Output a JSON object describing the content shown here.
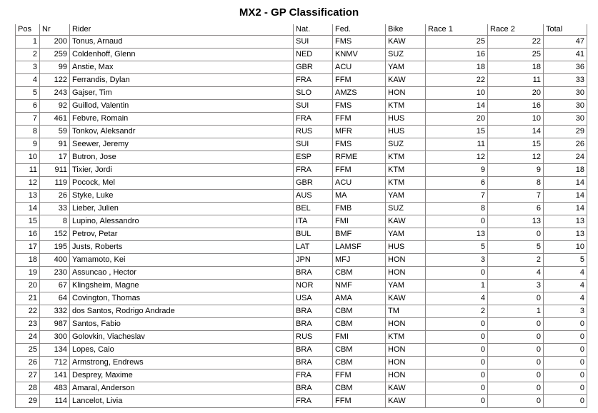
{
  "page": {
    "title": "MX2 - GP Classification"
  },
  "table": {
    "columns": [
      {
        "key": "pos",
        "label": "Pos"
      },
      {
        "key": "nr",
        "label": "Nr"
      },
      {
        "key": "rider",
        "label": "Rider"
      },
      {
        "key": "nat",
        "label": "Nat."
      },
      {
        "key": "fed",
        "label": "Fed."
      },
      {
        "key": "bike",
        "label": "Bike"
      },
      {
        "key": "race1",
        "label": "Race 1"
      },
      {
        "key": "race2",
        "label": "Race 2"
      },
      {
        "key": "total",
        "label": "Total"
      }
    ],
    "rows": [
      [
        "1",
        "200",
        "Tonus, Arnaud",
        "SUI",
        "FMS",
        "KAW",
        "25",
        "22",
        "47"
      ],
      [
        "2",
        "259",
        "Coldenhoff, Glenn",
        "NED",
        "KNMV",
        "SUZ",
        "16",
        "25",
        "41"
      ],
      [
        "3",
        "99",
        "Anstie, Max",
        "GBR",
        "ACU",
        "YAM",
        "18",
        "18",
        "36"
      ],
      [
        "4",
        "122",
        "Ferrandis, Dylan",
        "FRA",
        "FFM",
        "KAW",
        "22",
        "11",
        "33"
      ],
      [
        "5",
        "243",
        "Gajser, Tim",
        "SLO",
        "AMZS",
        "HON",
        "10",
        "20",
        "30"
      ],
      [
        "6",
        "92",
        "Guillod, Valentin",
        "SUI",
        "FMS",
        "KTM",
        "14",
        "16",
        "30"
      ],
      [
        "7",
        "461",
        "Febvre, Romain",
        "FRA",
        "FFM",
        "HUS",
        "20",
        "10",
        "30"
      ],
      [
        "8",
        "59",
        "Tonkov, Aleksandr",
        "RUS",
        "MFR",
        "HUS",
        "15",
        "14",
        "29"
      ],
      [
        "9",
        "91",
        "Seewer, Jeremy",
        "SUI",
        "FMS",
        "SUZ",
        "11",
        "15",
        "26"
      ],
      [
        "10",
        "17",
        "Butron, Jose",
        "ESP",
        "RFME",
        "KTM",
        "12",
        "12",
        "24"
      ],
      [
        "11",
        "911",
        "Tixier, Jordi",
        "FRA",
        "FFM",
        "KTM",
        "9",
        "9",
        "18"
      ],
      [
        "12",
        "119",
        "Pocock, Mel",
        "GBR",
        "ACU",
        "KTM",
        "6",
        "8",
        "14"
      ],
      [
        "13",
        "26",
        "Styke, Luke",
        "AUS",
        "MA",
        "YAM",
        "7",
        "7",
        "14"
      ],
      [
        "14",
        "33",
        "Lieber, Julien",
        "BEL",
        "FMB",
        "SUZ",
        "8",
        "6",
        "14"
      ],
      [
        "15",
        "8",
        "Lupino, Alessandro",
        "ITA",
        "FMI",
        "KAW",
        "0",
        "13",
        "13"
      ],
      [
        "16",
        "152",
        "Petrov, Petar",
        "BUL",
        "BMF",
        "YAM",
        "13",
        "0",
        "13"
      ],
      [
        "17",
        "195",
        "Justs, Roberts",
        "LAT",
        "LAMSF",
        "HUS",
        "5",
        "5",
        "10"
      ],
      [
        "18",
        "400",
        "Yamamoto, Kei",
        "JPN",
        "MFJ",
        "HON",
        "3",
        "2",
        "5"
      ],
      [
        "19",
        "230",
        "Assuncao , Hector",
        "BRA",
        "CBM",
        "HON",
        "0",
        "4",
        "4"
      ],
      [
        "20",
        "67",
        "Klingsheim, Magne",
        "NOR",
        "NMF",
        "YAM",
        "1",
        "3",
        "4"
      ],
      [
        "21",
        "64",
        "Covington, Thomas",
        "USA",
        "AMA",
        "KAW",
        "4",
        "0",
        "4"
      ],
      [
        "22",
        "332",
        "dos Santos, Rodrigo Andrade",
        "BRA",
        "CBM",
        "TM",
        "2",
        "1",
        "3"
      ],
      [
        "23",
        "987",
        "Santos, Fabio",
        "BRA",
        "CBM",
        "HON",
        "0",
        "0",
        "0"
      ],
      [
        "24",
        "300",
        "Golovkin, Viacheslav",
        "RUS",
        "FMI",
        "KTM",
        "0",
        "0",
        "0"
      ],
      [
        "25",
        "134",
        "Lopes, Caio",
        "BRA",
        "CBM",
        "HON",
        "0",
        "0",
        "0"
      ],
      [
        "26",
        "712",
        "Armstrong, Endrews",
        "BRA",
        "CBM",
        "HON",
        "0",
        "0",
        "0"
      ],
      [
        "27",
        "141",
        "Desprey, Maxime",
        "FRA",
        "FFM",
        "HON",
        "0",
        "0",
        "0"
      ],
      [
        "28",
        "483",
        "Amaral, Anderson",
        "BRA",
        "CBM",
        "KAW",
        "0",
        "0",
        "0"
      ],
      [
        "29",
        "114",
        "Lancelot, Livia",
        "FRA",
        "FFM",
        "KAW",
        "0",
        "0",
        "0"
      ]
    ]
  },
  "colors": {
    "border": "#8b8888",
    "text": "#000000",
    "background": "#ffffff"
  }
}
